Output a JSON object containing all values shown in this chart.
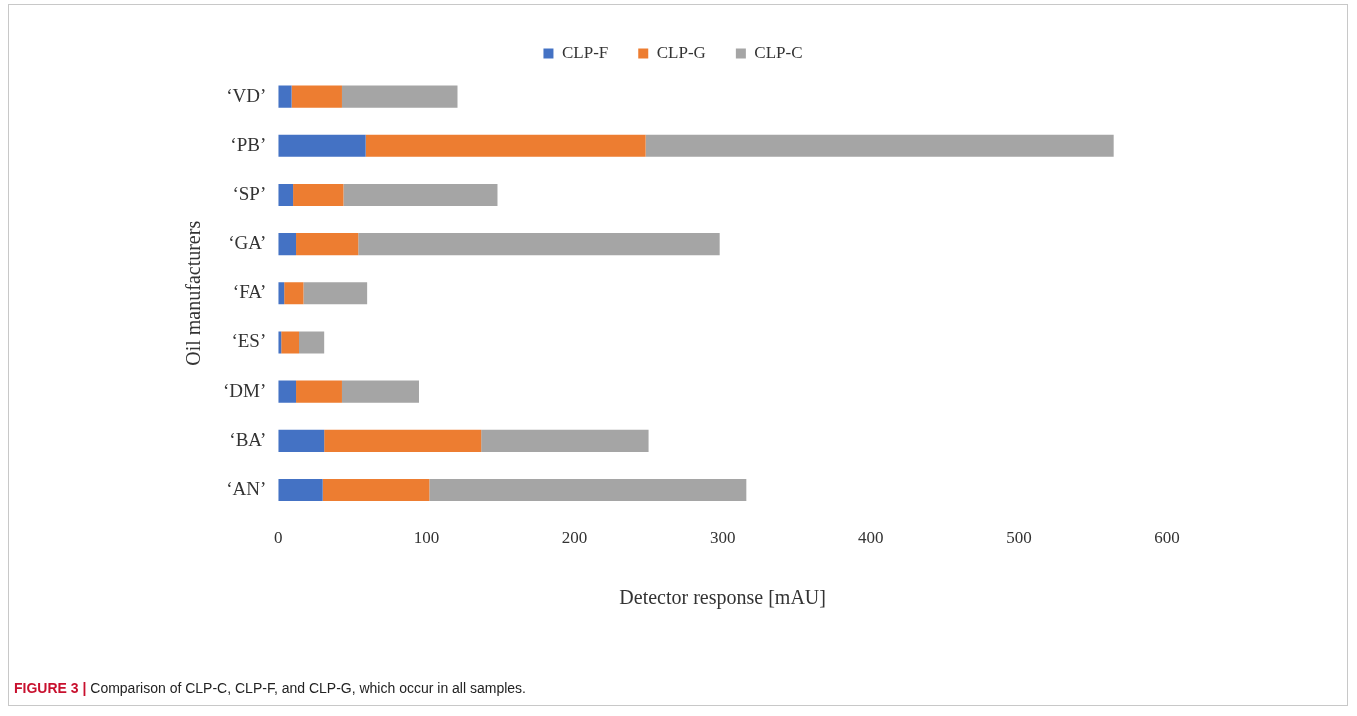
{
  "chart_data": {
    "type": "bar",
    "orientation": "horizontal",
    "stacked": true,
    "xlabel": "Detector response [mAU]",
    "ylabel": "Oil manufacturers",
    "categories": [
      "‘VD’",
      "‘PB’",
      "‘SP’",
      "‘GA’",
      "‘FA’",
      "‘ES’",
      "‘DM’",
      "‘BA’",
      "‘AN’"
    ],
    "series": [
      {
        "name": "CLP-F",
        "color": "#4472c4",
        "values": [
          9,
          59,
          10,
          12,
          4,
          2,
          12,
          31,
          30
        ]
      },
      {
        "name": "CLP-G",
        "color": "#ed7d31",
        "values": [
          34,
          189,
          34,
          42,
          13,
          12,
          31,
          106,
          72
        ]
      },
      {
        "name": "CLP-C",
        "color": "#a5a5a5",
        "values": [
          78,
          316,
          104,
          244,
          43,
          17,
          52,
          113,
          214
        ]
      }
    ],
    "xlim": [
      0,
      600
    ],
    "xticks": [
      0,
      100,
      200,
      300,
      400,
      500,
      600
    ],
    "grid": false,
    "legend": "top",
    "annotations": [
      "FIGURE 3 | Comparison of CLP-C, CLP-F, and CLP-G, which occur in all samples."
    ]
  }
}
